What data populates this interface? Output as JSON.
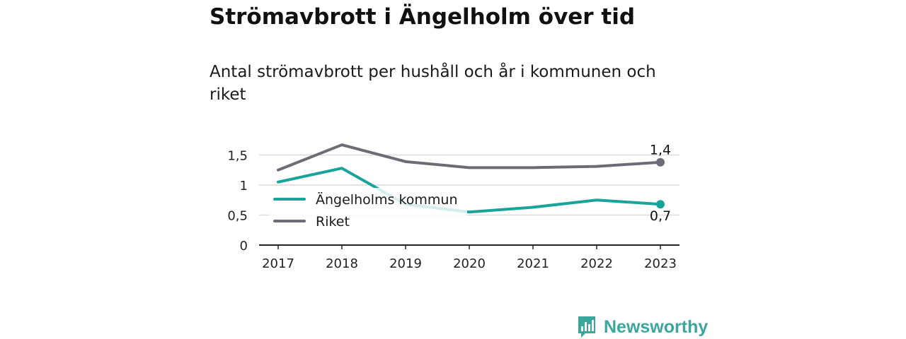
{
  "title": "Strömavbrott i Ängelholm över tid",
  "subtitle": "Antal strömavbrott per hushåll och år i kommunen och riket",
  "brand": {
    "name": "Newsworthy",
    "icon": "newsworthy-logo-icon",
    "color": "#3aa79c"
  },
  "chart_data": {
    "type": "line",
    "x": [
      "2017",
      "2018",
      "2019",
      "2020",
      "2021",
      "2022",
      "2023"
    ],
    "ylim": [
      0,
      1.8
    ],
    "yticks": [
      0,
      0.5,
      1,
      1.5
    ],
    "ytick_labels": [
      "0",
      "0,5",
      "1",
      "1,5"
    ],
    "grid": true,
    "legend_position": "center-left",
    "series": [
      {
        "name": "Ängelholms kommun",
        "color": "#1aa39a",
        "values": [
          1.05,
          1.28,
          0.68,
          0.55,
          0.63,
          0.75,
          0.68
        ],
        "end_label": "0,7"
      },
      {
        "name": "Riket",
        "color": "#6d6c74",
        "values": [
          1.25,
          1.67,
          1.39,
          1.29,
          1.29,
          1.31,
          1.38
        ],
        "end_label": "1,4"
      }
    ]
  }
}
